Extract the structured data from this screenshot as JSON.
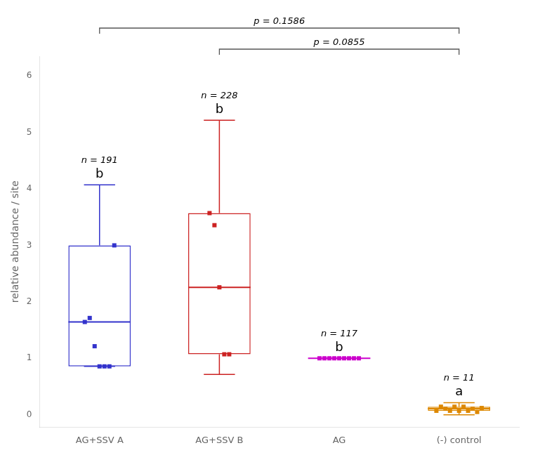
{
  "chart_data": {
    "type": "box",
    "ylabel": "relative abundance / site",
    "categories": [
      "AG+SSV A",
      "AG+SSV B",
      "AG",
      "(-) control"
    ],
    "colors": [
      "#3333cc",
      "#cc2222",
      "#cc00cc",
      "#dd8800"
    ],
    "boxes": [
      {
        "q1": 0.857,
        "median": 1.643,
        "q3": 3.0,
        "whisker_low": 0.857,
        "whisker_high": 4.071,
        "points": [
          1.643,
          1.714,
          1.214,
          0.857,
          0.857,
          0.857,
          3.0
        ]
      },
      {
        "q1": 1.071,
        "median": 2.257,
        "q3": 3.571,
        "whisker_low": 0.714,
        "whisker_high": 5.214,
        "points": [
          3.571,
          3.357,
          2.257,
          1.071,
          1.071
        ]
      },
      {
        "q1": 1.0,
        "median": 1.0,
        "q3": 1.0,
        "whisker_low": 1.0,
        "whisker_high": 1.0,
        "points": [
          1.0,
          1.0,
          1.0,
          1.0,
          1.0,
          1.0,
          1.0,
          1.0,
          1.0
        ]
      },
      {
        "q1": 0.071,
        "median": 0.107,
        "q3": 0.143,
        "whisker_low": 0.0,
        "whisker_high": 0.214,
        "points": [
          0.071,
          0.143,
          0.107,
          0.071,
          0.143,
          0.071,
          0.143,
          0.071,
          0.107,
          0.05,
          0.12
        ]
      }
    ],
    "n_labels": [
      "n = 191",
      "n = 228",
      "n = 117",
      "n = 11"
    ],
    "sig_labels": [
      "b",
      "b",
      "b",
      "a"
    ],
    "p_values": [
      {
        "text": "p = 0.1586",
        "from": "AG+SSV A",
        "to": "(-) control"
      },
      {
        "text": "p = 0.0855",
        "from": "AG+SSV B",
        "to": "(-) control"
      }
    ],
    "ylim": [
      -0.22,
      6.35
    ],
    "yticks": [
      0,
      1,
      2,
      3,
      4,
      5,
      6
    ],
    "grid": false
  }
}
